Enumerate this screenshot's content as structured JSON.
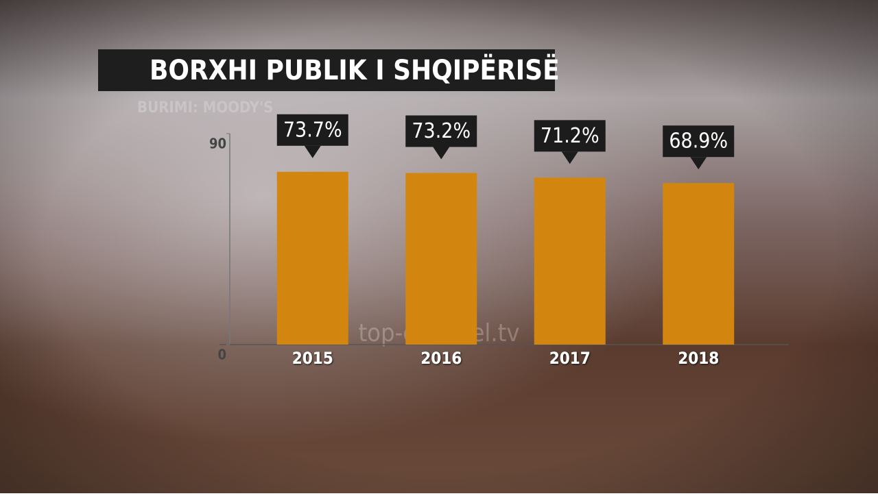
{
  "chart_data": {
    "type": "bar",
    "title": "BORXHI PUBLIK I SHQIPËRISË",
    "source": "BURIMI: MOODY'S",
    "watermark": "top-channel.tv",
    "categories": [
      "2015",
      "2016",
      "2017",
      "2018"
    ],
    "values": [
      73.7,
      73.2,
      71.2,
      68.9
    ],
    "value_labels": [
      "73.7%",
      "73.2%",
      "71.2%",
      "68.9%"
    ],
    "color": "#d3860f",
    "ylim": [
      0,
      90
    ],
    "yticks": [
      0,
      90
    ]
  }
}
